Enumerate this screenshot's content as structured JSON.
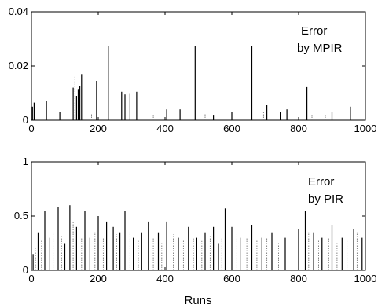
{
  "chart_data": [
    {
      "type": "line",
      "annotation": [
        "Error",
        "by MPIR"
      ],
      "xlabel": "",
      "ylabel": "",
      "xlim": [
        0,
        1000
      ],
      "ylim": [
        0,
        0.04
      ],
      "xticks": [
        0,
        200,
        400,
        600,
        800,
        1000
      ],
      "yticks": [
        0,
        0.02,
        0.04
      ],
      "xtick_labels": [
        "0",
        "200",
        "400",
        "600",
        "800",
        "1000"
      ],
      "ytick_labels": [
        "0",
        "0.02",
        "0.04"
      ],
      "series": [
        {
          "style": "solid",
          "x": [
            3,
            8,
            45,
            85,
            125,
            135,
            140,
            145,
            150,
            195,
            230,
            270,
            280,
            295,
            315,
            405,
            445,
            490,
            545,
            600,
            660,
            705,
            745,
            765,
            825,
            900,
            955
          ],
          "values": [
            0.005,
            0.0065,
            0.007,
            0.003,
            0.012,
            0.009,
            0.0115,
            0.0125,
            0.017,
            0.0145,
            0.0275,
            0.0105,
            0.0095,
            0.01,
            0.0105,
            0.004,
            0.004,
            0.0275,
            0.002,
            0.003,
            0.0275,
            0.0055,
            0.003,
            0.004,
            0.0122,
            0.003,
            0.005
          ]
        },
        {
          "style": "dotted",
          "x": [
            130,
            180,
            365,
            520,
            695,
            840,
            880
          ],
          "values": [
            0.016,
            0.0025,
            0.002,
            0.0025,
            0.003,
            0.002,
            0.002
          ]
        }
      ]
    },
    {
      "type": "line",
      "annotation": [
        "Error",
        "by PIR"
      ],
      "xlabel": "Runs",
      "ylabel": "",
      "xlim": [
        0,
        1000
      ],
      "ylim": [
        0,
        1
      ],
      "xticks": [
        0,
        200,
        400,
        600,
        800,
        1000
      ],
      "yticks": [
        0,
        0.5,
        1
      ],
      "xtick_labels": [
        "0",
        "200",
        "400",
        "600",
        "800",
        "1000"
      ],
      "ytick_labels": [
        "0",
        "0.5",
        "1"
      ],
      "series": [
        {
          "style": "solid",
          "x": [
            5,
            20,
            40,
            55,
            80,
            100,
            115,
            135,
            160,
            175,
            200,
            225,
            245,
            265,
            280,
            305,
            330,
            350,
            380,
            405,
            440,
            470,
            495,
            520,
            545,
            560,
            580,
            600,
            625,
            660,
            690,
            720,
            760,
            800,
            820,
            845,
            870,
            900,
            930,
            965,
            990
          ],
          "values": [
            0.15,
            0.35,
            0.55,
            0.3,
            0.58,
            0.25,
            0.6,
            0.4,
            0.55,
            0.3,
            0.5,
            0.45,
            0.4,
            0.35,
            0.55,
            0.3,
            0.35,
            0.45,
            0.35,
            0.45,
            0.3,
            0.4,
            0.3,
            0.35,
            0.4,
            0.25,
            0.57,
            0.4,
            0.3,
            0.42,
            0.3,
            0.35,
            0.3,
            0.38,
            0.55,
            0.35,
            0.3,
            0.42,
            0.3,
            0.38,
            0.3
          ]
        },
        {
          "style": "dotted",
          "x": [
            12,
            30,
            65,
            90,
            125,
            150,
            190,
            215,
            255,
            295,
            320,
            365,
            390,
            425,
            455,
            485,
            510,
            535,
            570,
            615,
            645,
            675,
            705,
            740,
            780,
            830,
            860,
            890,
            915,
            945,
            975
          ],
          "values": [
            0.2,
            0.28,
            0.35,
            0.32,
            0.45,
            0.3,
            0.35,
            0.3,
            0.33,
            0.35,
            0.28,
            0.3,
            0.25,
            0.33,
            0.28,
            0.3,
            0.27,
            0.32,
            0.3,
            0.33,
            0.3,
            0.28,
            0.3,
            0.25,
            0.3,
            0.35,
            0.28,
            0.3,
            0.25,
            0.28,
            0.35
          ]
        }
      ]
    }
  ]
}
